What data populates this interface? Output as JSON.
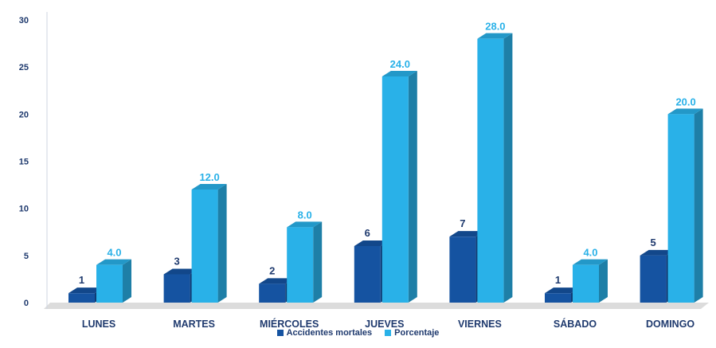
{
  "chart_data": {
    "type": "bar",
    "categories": [
      "LUNES",
      "MARTES",
      "MIÉRCOLES",
      "JUEVES",
      "VIERNES",
      "SÁBADO",
      "DOMINGO"
    ],
    "series": [
      {
        "name": "Accidentes mortales",
        "values": [
          1,
          3,
          2,
          6,
          7,
          1,
          5
        ],
        "labels": [
          "1",
          "3",
          "2",
          "6",
          "7",
          "1",
          "5"
        ],
        "color": "#1553a1"
      },
      {
        "name": "Porcentaje",
        "values": [
          4.0,
          12.0,
          8.0,
          24.0,
          28.0,
          4.0,
          20.0
        ],
        "labels": [
          "4.0",
          "12.0",
          "8.0",
          "24.0",
          "28.0",
          "4.0",
          "20.0"
        ],
        "color": "#29b1e8"
      }
    ],
    "yticks": [
      "0",
      "5",
      "10",
      "15",
      "20",
      "25",
      "30"
    ],
    "ylim": [
      0,
      30
    ],
    "grid": false,
    "legend_position": "bottom"
  }
}
